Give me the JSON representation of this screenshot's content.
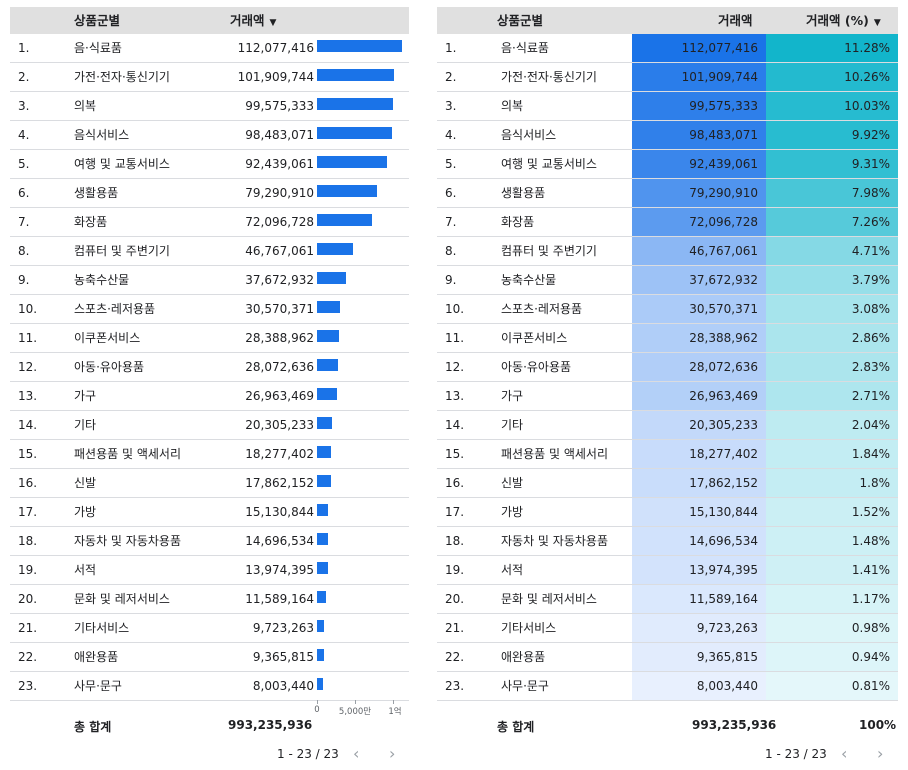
{
  "left_table": {
    "col_category": "상품군별",
    "col_amount": "거래액",
    "axis_labels": [
      "0",
      "5,000만",
      "1억"
    ],
    "total_label": "총 합계",
    "total_amount": "993,235,936",
    "pager": "1 - 23 / 23"
  },
  "right_table": {
    "col_category": "상품군별",
    "col_amount": "거래액",
    "col_percent": "거래액 (%)",
    "total_label": "총 합계",
    "total_amount": "993,235,936",
    "total_percent": "100%",
    "pager": "1 - 23 / 23"
  },
  "colors": {
    "bar": "#1a73e8",
    "amount_heat_max": "#1a73e8",
    "percent_heat_max": "#12b5cb"
  },
  "rows": [
    {
      "rank": "1.",
      "category": "음·식료품",
      "amount": "112,077,416",
      "value": 112077416,
      "percent": "11.28%"
    },
    {
      "rank": "2.",
      "category": "가전·전자·통신기기",
      "amount": "101,909,744",
      "value": 101909744,
      "percent": "10.26%"
    },
    {
      "rank": "3.",
      "category": "의복",
      "amount": "99,575,333",
      "value": 99575333,
      "percent": "10.03%"
    },
    {
      "rank": "4.",
      "category": "음식서비스",
      "amount": "98,483,071",
      "value": 98483071,
      "percent": "9.92%"
    },
    {
      "rank": "5.",
      "category": "여행 및 교통서비스",
      "amount": "92,439,061",
      "value": 92439061,
      "percent": "9.31%"
    },
    {
      "rank": "6.",
      "category": "생활용품",
      "amount": "79,290,910",
      "value": 79290910,
      "percent": "7.98%"
    },
    {
      "rank": "7.",
      "category": "화장품",
      "amount": "72,096,728",
      "value": 72096728,
      "percent": "7.26%"
    },
    {
      "rank": "8.",
      "category": "컴퓨터 및 주변기기",
      "amount": "46,767,061",
      "value": 46767061,
      "percent": "4.71%"
    },
    {
      "rank": "9.",
      "category": "농축수산물",
      "amount": "37,672,932",
      "value": 37672932,
      "percent": "3.79%"
    },
    {
      "rank": "10.",
      "category": "스포츠·레저용품",
      "amount": "30,570,371",
      "value": 30570371,
      "percent": "3.08%"
    },
    {
      "rank": "11.",
      "category": "이쿠폰서비스",
      "amount": "28,388,962",
      "value": 28388962,
      "percent": "2.86%"
    },
    {
      "rank": "12.",
      "category": "아동·유아용품",
      "amount": "28,072,636",
      "value": 28072636,
      "percent": "2.83%"
    },
    {
      "rank": "13.",
      "category": "가구",
      "amount": "26,963,469",
      "value": 26963469,
      "percent": "2.71%"
    },
    {
      "rank": "14.",
      "category": "기타",
      "amount": "20,305,233",
      "value": 20305233,
      "percent": "2.04%"
    },
    {
      "rank": "15.",
      "category": "패션용품 및 액세서리",
      "amount": "18,277,402",
      "value": 18277402,
      "percent": "1.84%"
    },
    {
      "rank": "16.",
      "category": "신발",
      "amount": "17,862,152",
      "value": 17862152,
      "percent": "1.8%"
    },
    {
      "rank": "17.",
      "category": "가방",
      "amount": "15,130,844",
      "value": 15130844,
      "percent": "1.52%"
    },
    {
      "rank": "18.",
      "category": "자동차 및 자동차용품",
      "amount": "14,696,534",
      "value": 14696534,
      "percent": "1.48%"
    },
    {
      "rank": "19.",
      "category": "서적",
      "amount": "13,974,395",
      "value": 13974395,
      "percent": "1.41%"
    },
    {
      "rank": "20.",
      "category": "문화 및 레저서비스",
      "amount": "11,589,164",
      "value": 11589164,
      "percent": "1.17%"
    },
    {
      "rank": "21.",
      "category": "기타서비스",
      "amount": "9,723,263",
      "value": 9723263,
      "percent": "0.98%"
    },
    {
      "rank": "22.",
      "category": "애완용품",
      "amount": "9,365,815",
      "value": 9365815,
      "percent": "0.94%"
    },
    {
      "rank": "23.",
      "category": "사무·문구",
      "amount": "8,003,440",
      "value": 8003440,
      "percent": "0.81%"
    }
  ]
}
